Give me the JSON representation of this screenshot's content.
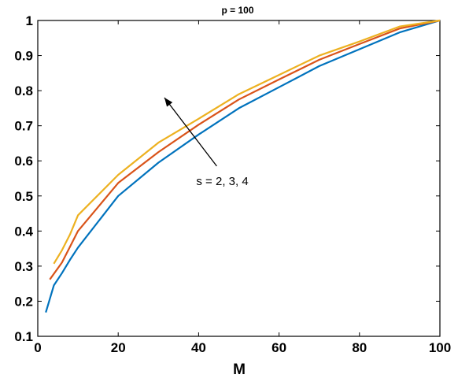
{
  "chart_data": {
    "type": "line",
    "title": "p = 100",
    "xlabel": "M",
    "ylabel": "",
    "xlim": [
      0,
      100
    ],
    "ylim": [
      0.1,
      1
    ],
    "xticks": [
      0,
      20,
      40,
      60,
      80,
      100
    ],
    "xtick_labels": [
      "0",
      "20",
      "40",
      "60",
      "80",
      "100"
    ],
    "yticks": [
      0.1,
      0.2,
      0.3,
      0.4,
      0.5,
      0.6,
      0.7,
      0.8,
      0.9,
      1
    ],
    "ytick_labels": [
      "0.1",
      "0.2",
      "0.3",
      "0.4",
      "0.5",
      "0.6",
      "0.7",
      "0.8",
      "0.9",
      "1"
    ],
    "grid": false,
    "series": [
      {
        "color": "#0072BD",
        "x": [
          2,
          4,
          6,
          8,
          10,
          20,
          30,
          40,
          50,
          60,
          70,
          80,
          90,
          100
        ],
        "y": [
          0.168,
          0.245,
          0.28,
          0.318,
          0.353,
          0.5,
          0.595,
          0.675,
          0.75,
          0.81,
          0.87,
          0.918,
          0.966,
          1.0
        ]
      },
      {
        "color": "#D95319",
        "x": [
          3,
          6,
          8,
          10,
          20,
          30,
          40,
          50,
          60,
          70,
          80,
          90,
          100
        ],
        "y": [
          0.262,
          0.31,
          0.355,
          0.4,
          0.537,
          0.625,
          0.703,
          0.775,
          0.832,
          0.888,
          0.933,
          0.977,
          1.0
        ]
      },
      {
        "color": "#EDB120",
        "x": [
          4,
          6,
          8,
          10,
          20,
          30,
          40,
          50,
          60,
          70,
          80,
          90,
          100
        ],
        "y": [
          0.307,
          0.345,
          0.39,
          0.445,
          0.56,
          0.652,
          0.72,
          0.79,
          0.845,
          0.9,
          0.94,
          0.983,
          1.0
        ]
      }
    ],
    "annotation": {
      "text": "s = 2, 3, 4",
      "arrow_from": [
        44.5,
        0.585
      ],
      "arrow_to": [
        31.5,
        0.78
      ]
    }
  }
}
